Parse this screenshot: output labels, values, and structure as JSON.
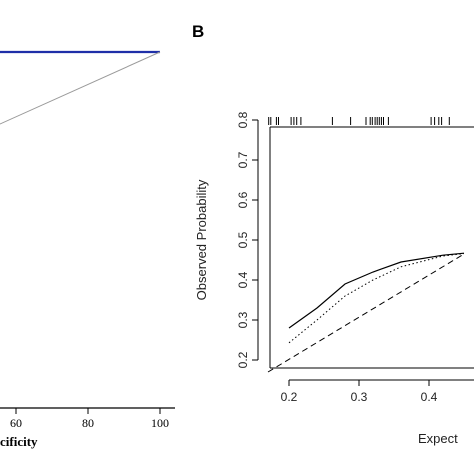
{
  "panels": {
    "B": {
      "label": "B"
    }
  },
  "chart_data": [
    {
      "type": "line",
      "panel": "A",
      "xlabel": "cificity",
      "x_ticks": [
        60,
        80,
        100
      ],
      "xlim": [
        0,
        100
      ],
      "ylim": [
        0,
        100
      ],
      "series": [
        {
          "color": "#1f2fa8",
          "points": [
            [
              40,
              95
            ],
            [
              45,
              100
            ],
            [
              100,
              100
            ]
          ]
        },
        {
          "color": "#9a9a9a",
          "points": [
            [
              0,
              0
            ],
            [
              100,
              100
            ]
          ]
        }
      ],
      "grid": false
    },
    {
      "type": "line",
      "panel": "B",
      "xlabel": "Expect",
      "ylabel": "Observed Probability",
      "x_ticks": [
        0.2,
        0.3,
        0.4
      ],
      "y_ticks": [
        0.2,
        0.3,
        0.4,
        0.5,
        0.6,
        0.7,
        0.8
      ],
      "xlim": [
        0.17,
        0.45
      ],
      "ylim": [
        0.18,
        0.82
      ],
      "series": [
        {
          "style": "solid",
          "points": [
            [
              0.2,
              0.28
            ],
            [
              0.24,
              0.33
            ],
            [
              0.28,
              0.39
            ],
            [
              0.32,
              0.42
            ],
            [
              0.36,
              0.445
            ],
            [
              0.42,
              0.462
            ],
            [
              0.45,
              0.467
            ]
          ]
        },
        {
          "style": "dotted",
          "points": [
            [
              0.2,
              0.243
            ],
            [
              0.24,
              0.3
            ],
            [
              0.28,
              0.36
            ],
            [
              0.32,
              0.4
            ],
            [
              0.36,
              0.433
            ],
            [
              0.42,
              0.46
            ],
            [
              0.45,
              0.466
            ]
          ]
        },
        {
          "style": "dashed",
          "points": [
            [
              0.17,
              0.17
            ],
            [
              0.45,
              0.465
            ]
          ]
        }
      ],
      "rug_x": [
        0.171,
        0.174,
        0.182,
        0.185,
        0.203,
        0.207,
        0.211,
        0.217,
        0.262,
        0.288,
        0.31,
        0.316,
        0.319,
        0.323,
        0.326,
        0.329,
        0.332,
        0.335,
        0.342,
        0.403,
        0.408,
        0.414,
        0.418,
        0.429
      ],
      "grid": false
    }
  ]
}
